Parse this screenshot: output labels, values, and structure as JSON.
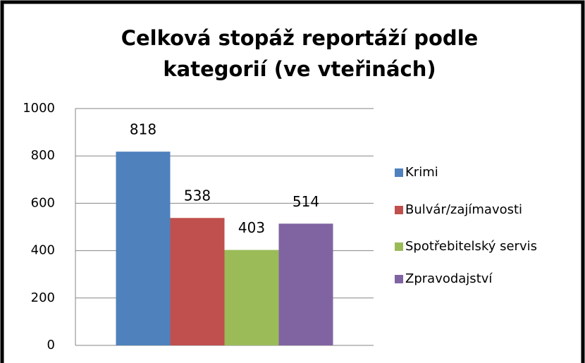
{
  "chart_data": {
    "type": "bar",
    "title": "Celková stopáž reportáží podle kategorií (ve vteřinách)",
    "categories": [
      null
    ],
    "series": [
      {
        "name": "Krimi",
        "color": "#4f81bd",
        "values": [
          818
        ]
      },
      {
        "name": "Bulvár/zajímavosti",
        "color": "#c0504d",
        "values": [
          538
        ]
      },
      {
        "name": "Spotřebitelský servis",
        "color": "#9bbb59",
        "values": [
          403
        ]
      },
      {
        "name": "Zpravodajství",
        "color": "#8064a2",
        "values": [
          514
        ]
      }
    ],
    "ylim": [
      0,
      1000
    ],
    "yticks": [
      0,
      200,
      400,
      600,
      800,
      1000
    ],
    "grid": true,
    "legend": "right",
    "data_labels": true
  }
}
